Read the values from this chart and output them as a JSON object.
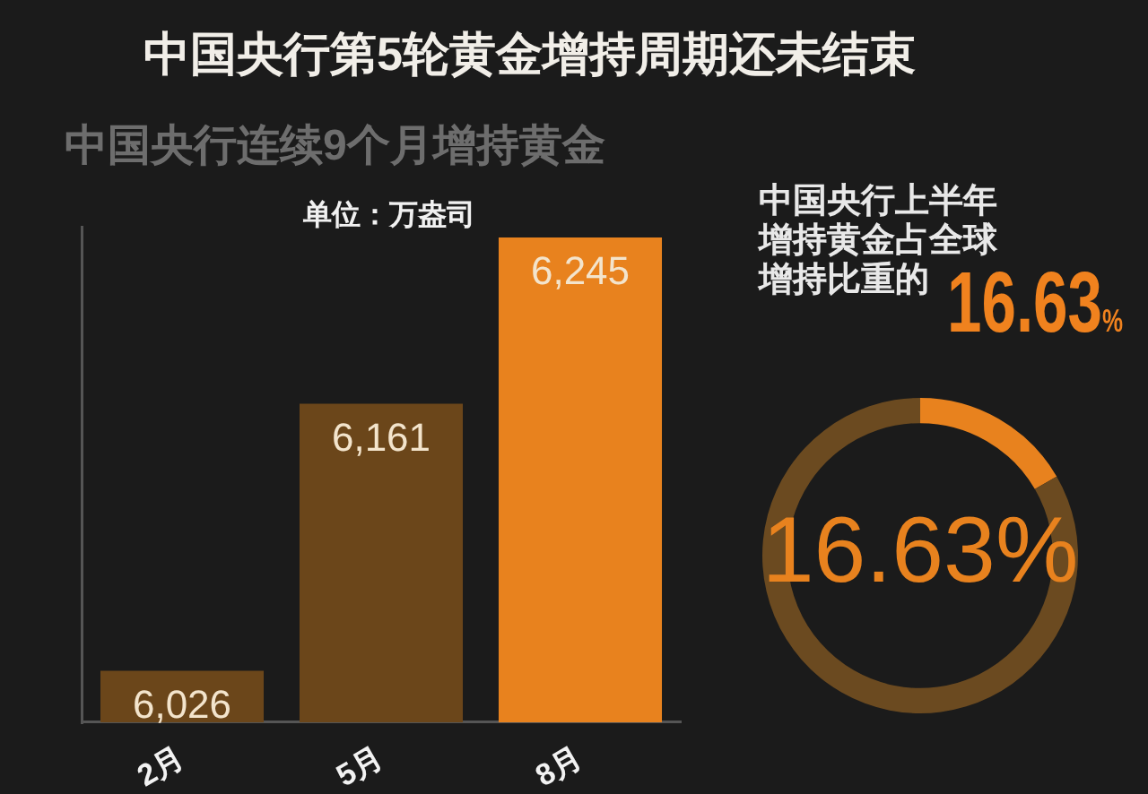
{
  "chart_data": [
    {
      "type": "bar",
      "title": "中国央行第5轮黄金增持周期还未结束",
      "subtitle": "中国央行连续9个月增持黄金",
      "ylabel": "单位：万盎司",
      "categories": [
        "2月",
        "5月",
        "8月"
      ],
      "values": [
        6026,
        6161,
        6245
      ],
      "value_labels": [
        "6,026",
        "6,161",
        "6,245"
      ],
      "colors": [
        "#6b461a",
        "#6b461a",
        "#e8821e"
      ],
      "tick_labels": "x"
    },
    {
      "type": "donut",
      "title": "中国央行上半年增持黄金占全球增持比重的",
      "annotations": [
        "16.63%"
      ],
      "categories": [
        null,
        null
      ],
      "values": [
        16.63,
        83.37
      ],
      "colors": [
        "#e8821e",
        "#6b4a20"
      ],
      "value_labels": [
        "16.63%",
        null
      ]
    }
  ]
}
